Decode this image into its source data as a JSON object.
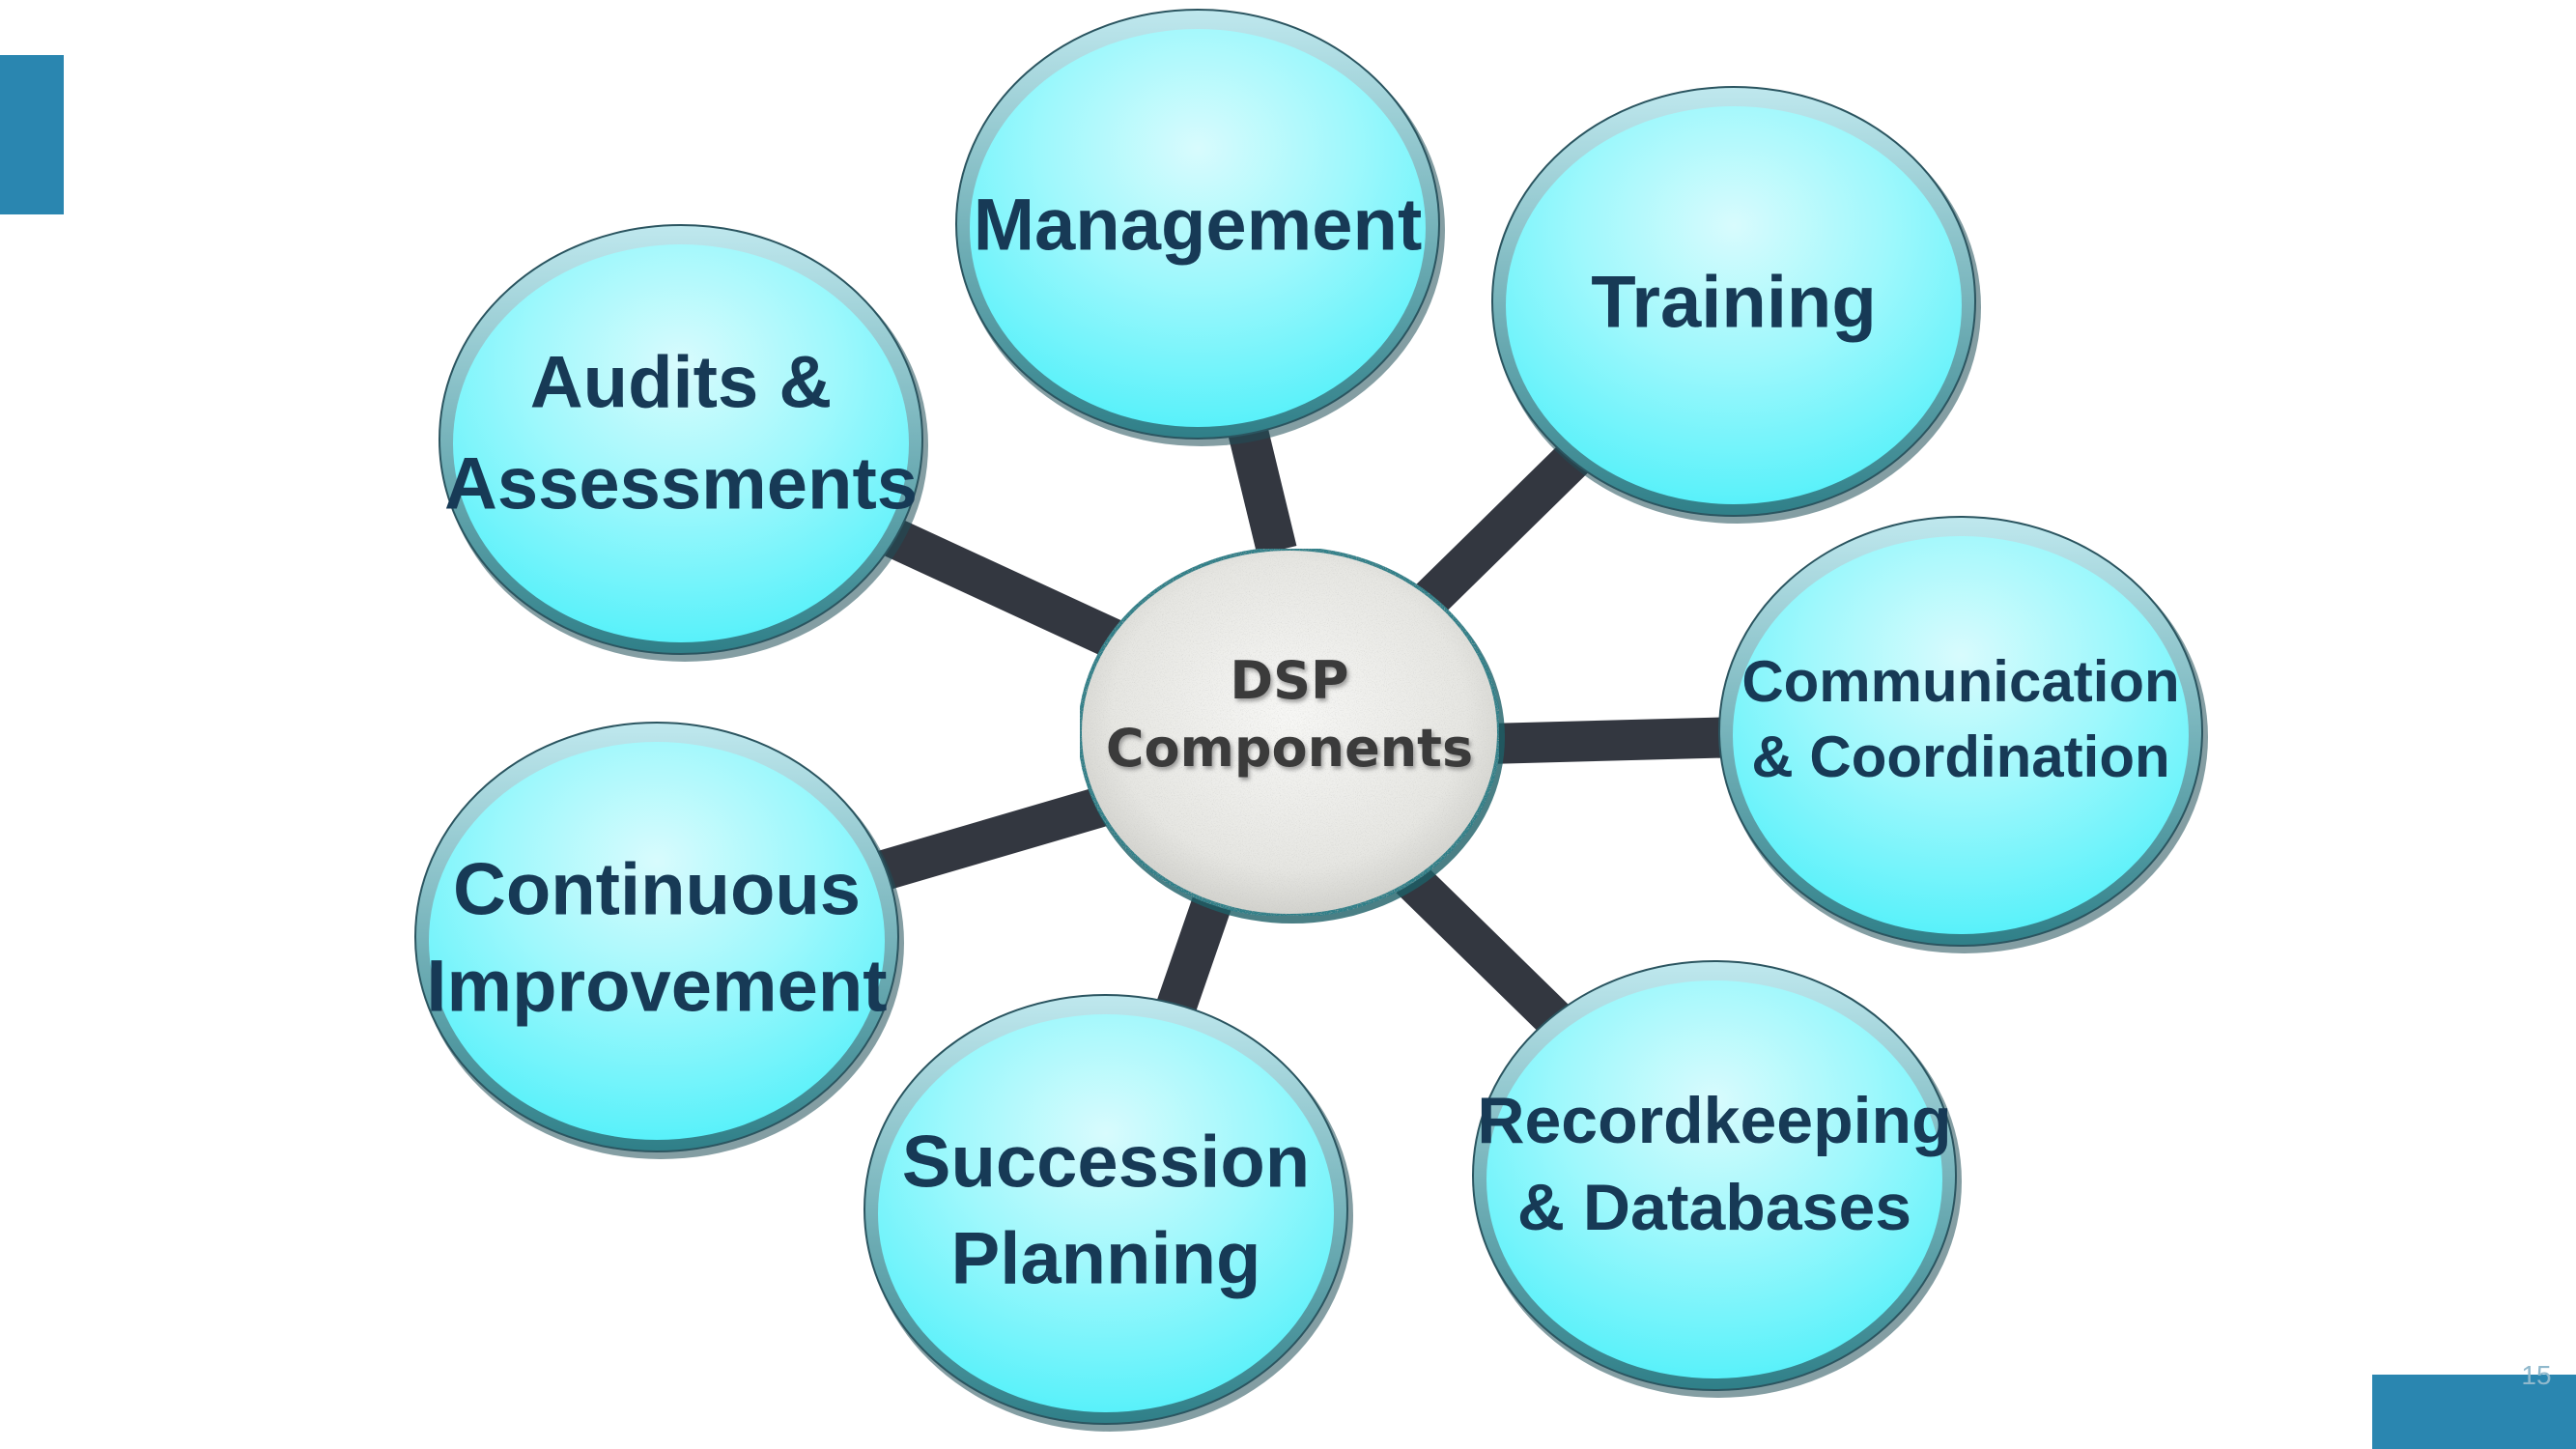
{
  "diagram": {
    "hub": {
      "lines": [
        "DSP",
        "Components"
      ]
    },
    "nodes": [
      {
        "id": "management",
        "lines": [
          "Management"
        ]
      },
      {
        "id": "training",
        "lines": [
          "Training"
        ]
      },
      {
        "id": "communication",
        "lines": [
          "Communication",
          "& Coordination"
        ]
      },
      {
        "id": "recordkeeping",
        "lines": [
          "Recordkeeping",
          "& Databases"
        ]
      },
      {
        "id": "succession",
        "lines": [
          "Succession",
          "Planning"
        ]
      },
      {
        "id": "continuous",
        "lines": [
          "Continuous",
          "Improvement"
        ]
      },
      {
        "id": "audits",
        "lines": [
          "Audits &",
          "Assessments"
        ]
      }
    ]
  },
  "slide": {
    "number": "15"
  },
  "colors": {
    "accent": "#2a86b0",
    "node_fill": "#6ff5fb",
    "node_text": "#173a56",
    "spoke": "#333740"
  }
}
